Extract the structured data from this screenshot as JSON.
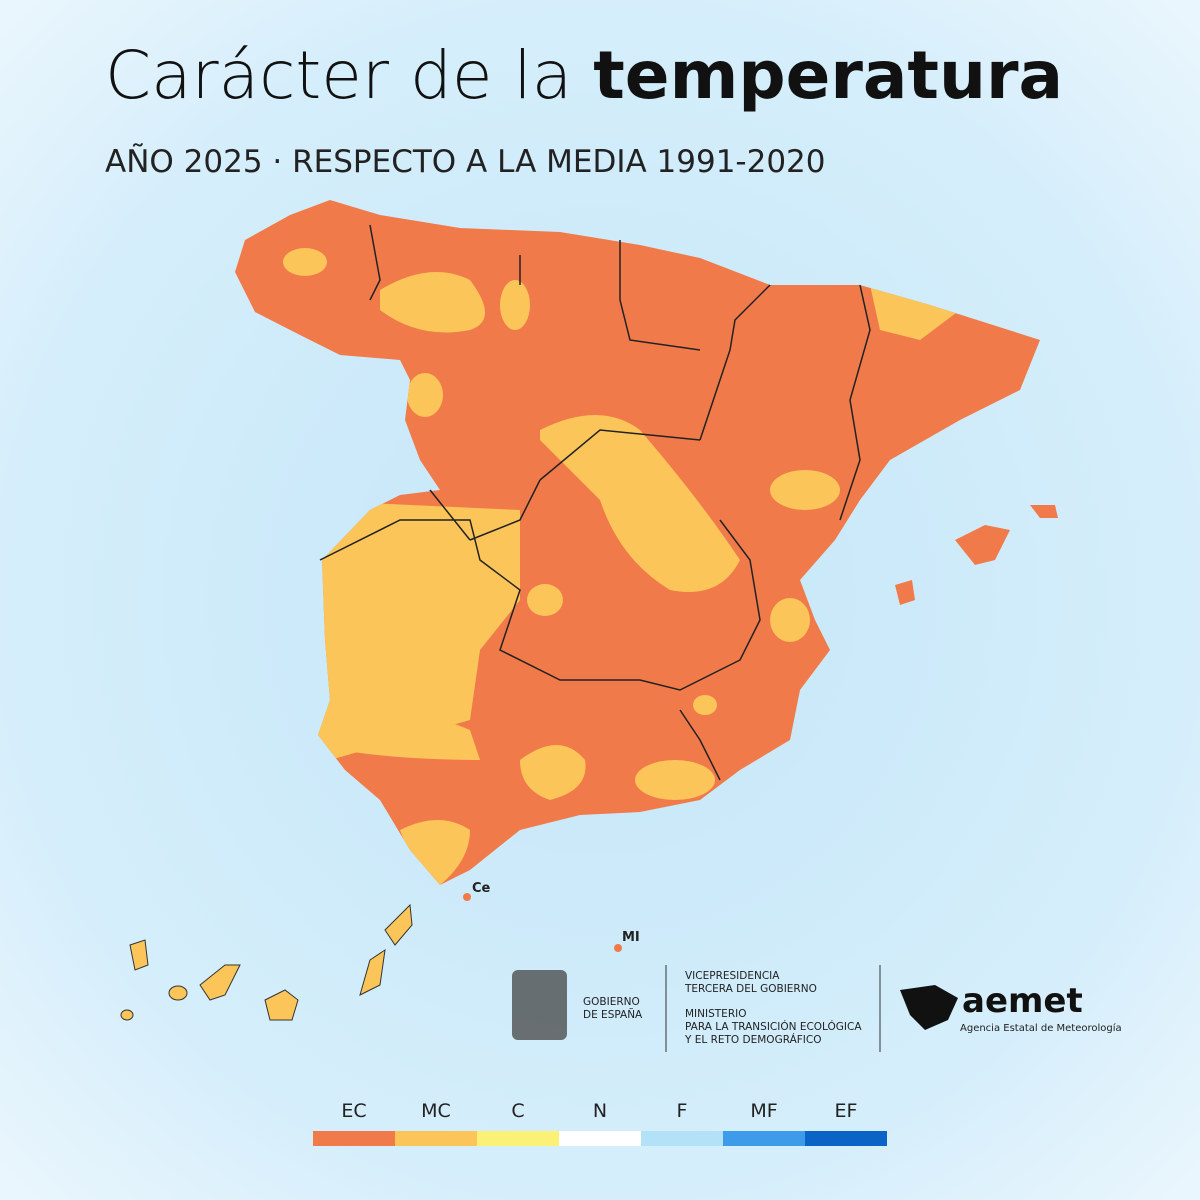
{
  "header": {
    "title": {
      "light": "Carácter de la",
      "bold": "temperatura"
    },
    "subtitle": "AÑO 2025 · RESPECTO A LA MEDIA 1991-2020"
  },
  "map": {
    "places": [
      "Ce",
      "MI"
    ],
    "colors": {
      "land": "#f07a4a",
      "patch": "#fbc55a"
    }
  },
  "logos": {
    "government": [
      "GOBIERNO",
      "DE ESPAÑA"
    ],
    "ministry": [
      "VICEPRESIDENCIA",
      "TERCERA DEL GOBIERNO",
      "MINISTERIO",
      "PARA LA TRANSICIÓN ECOLÓGICA",
      "Y EL RETO DEMOGRÁFICO"
    ],
    "agency": "aemet",
    "agency_name": "Agencia Estatal de Meteorología"
  },
  "legend": [
    {
      "label": "EC",
      "color": "#f07a4a"
    },
    {
      "label": "MC",
      "color": "#fbc55a"
    },
    {
      "label": "C",
      "color": "#fbf176"
    },
    {
      "label": "N",
      "color": "#ffffff"
    },
    {
      "label": "F",
      "color": "#b3e1f8"
    },
    {
      "label": "MF",
      "color": "#3d9be9"
    },
    {
      "label": "EF",
      "color": "#0b63c5"
    }
  ]
}
